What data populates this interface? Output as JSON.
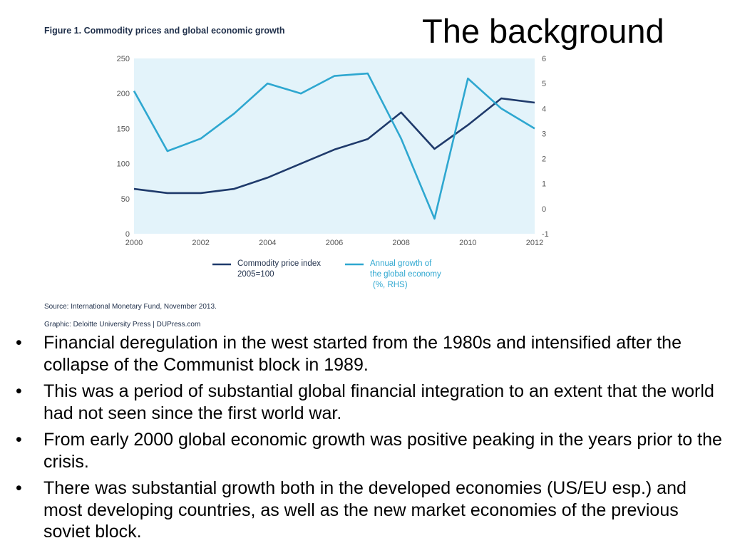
{
  "slide": {
    "title": "The background",
    "figure_caption": "Figure 1. Commodity prices and global economic growth",
    "source": "Source: International Monetary Fund, November 2013.",
    "graphic_credit": "Graphic: Deloitte University Press  |  DUPress.com",
    "bullets": [
      "Financial deregulation in the west started from the 1980s and intensified after the collapse of the Communist block in 1989.",
      "This was a period of substantial global financial integration to an extent that the world had not seen since the first world war.",
      "From early 2000 global economic growth was positive peaking in the years prior to the crisis.",
      "There was substantial growth both in the developed economies (US/EU esp.) and most developing countries, as well as the new market economies of the previous soviet block."
    ],
    "bullet_symbol": "•"
  },
  "chart_data": {
    "type": "line",
    "title": "Figure 1. Commodity prices and global economic growth",
    "x": [
      2000,
      2001,
      2002,
      2003,
      2004,
      2005,
      2006,
      2007,
      2008,
      2009,
      2010,
      2011,
      2012
    ],
    "x_ticks": [
      "2000",
      "2002",
      "2004",
      "2006",
      "2008",
      "2010",
      "2012"
    ],
    "xlim": [
      2000,
      2012
    ],
    "ylim_left": [
      0,
      250
    ],
    "y_ticks_left": [
      "0",
      "50",
      "100",
      "150",
      "200",
      "250"
    ],
    "ylim_right": [
      -1,
      6
    ],
    "y_ticks_right": [
      "-1",
      "0",
      "1",
      "2",
      "3",
      "4",
      "5",
      "6"
    ],
    "series": [
      {
        "name_lines": [
          "Commodity price index",
          "2005=100"
        ],
        "axis": "left",
        "color": "#1f3a6b",
        "values": [
          64,
          58,
          58,
          64,
          80,
          100,
          120,
          135,
          173,
          121,
          155,
          193,
          187
        ]
      },
      {
        "name_lines": [
          "Annual growth of",
          "the global economy",
          "(%, RHS)"
        ],
        "axis": "right",
        "color": "#2ea7d0",
        "values": [
          4.7,
          2.3,
          2.8,
          3.8,
          5.0,
          4.6,
          5.3,
          5.4,
          2.8,
          -0.4,
          5.2,
          4.0,
          3.2
        ]
      }
    ],
    "plot_background": "#e3f3fa",
    "grid": false,
    "legend_position": "bottom"
  }
}
